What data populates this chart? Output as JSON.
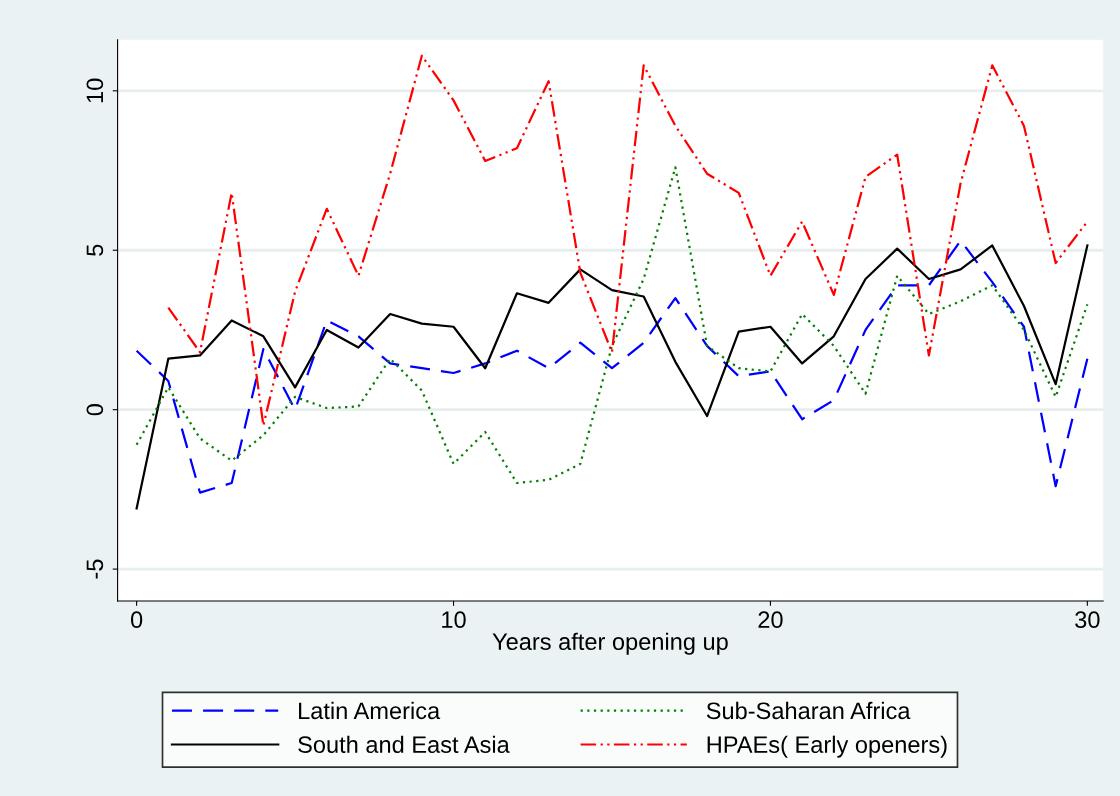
{
  "chart_data": {
    "type": "line",
    "xlabel": "Years after opening up",
    "x": [
      0,
      1,
      2,
      3,
      4,
      5,
      6,
      7,
      8,
      9,
      10,
      11,
      12,
      13,
      14,
      15,
      16,
      17,
      18,
      19,
      20,
      21,
      22,
      23,
      24,
      25,
      26,
      27,
      28,
      29,
      30
    ],
    "xlim": [
      -0.6,
      30.5
    ],
    "xticks": [
      0,
      10,
      20,
      30
    ],
    "ylim": [
      -6.0,
      11.6
    ],
    "yticks": [
      -5,
      0,
      5,
      10
    ],
    "grid": "y",
    "legend": "bottom",
    "series": [
      {
        "name": "Latin America",
        "color": "#0000ff",
        "line_style": "dashed",
        "values": [
          1.85,
          0.9,
          -2.6,
          -2.3,
          1.9,
          0,
          2.8,
          2.3,
          1.45,
          1.3,
          1.15,
          1.45,
          1.85,
          1.3,
          2.1,
          1.3,
          2.1,
          3.5,
          2.0,
          1.05,
          1.2,
          -0.3,
          0.3,
          2.5,
          3.9,
          3.9,
          5.3,
          4.0,
          2.6,
          -2.4,
          1.6
        ]
      },
      {
        "name": "South and East Asia",
        "color": "#000000",
        "line_style": "solid",
        "values": [
          -3.1,
          1.6,
          1.7,
          2.8,
          2.3,
          0.7,
          2.5,
          1.95,
          3.0,
          2.7,
          2.6,
          1.3,
          3.65,
          3.35,
          4.4,
          3.75,
          3.55,
          1.5,
          -0.2,
          2.45,
          2.6,
          1.45,
          2.3,
          4.1,
          5.05,
          4.1,
          4.4,
          5.15,
          3.25,
          0.8,
          5.15
        ]
      },
      {
        "name": "Sub-Saharan Africa",
        "color": "#008000",
        "line_style": "dotted",
        "values": [
          -1.1,
          0.7,
          -0.9,
          -1.6,
          -0.8,
          0.4,
          0.05,
          0.1,
          1.6,
          0.6,
          -1.7,
          -0.7,
          -2.3,
          -2.2,
          -1.7,
          2.0,
          4.1,
          7.6,
          2.0,
          1.3,
          1.2,
          3.0,
          2.0,
          0.5,
          4.2,
          3.0,
          3.4,
          3.9,
          2.5,
          0.4,
          3.3
        ]
      },
      {
        "name": "HPAEs( Early openers)",
        "color": "#ff0000",
        "line_style": "dashdot",
        "values": [
          null,
          3.2,
          1.8,
          6.8,
          -0.5,
          3.7,
          6.3,
          4.2,
          7.4,
          11.1,
          9.7,
          7.8,
          8.2,
          10.3,
          4.3,
          1.8,
          10.8,
          8.9,
          7.4,
          6.8,
          4.2,
          5.9,
          3.6,
          7.3,
          8.0,
          1.7,
          7.1,
          10.8,
          8.9,
          4.6,
          5.9
        ]
      }
    ]
  }
}
